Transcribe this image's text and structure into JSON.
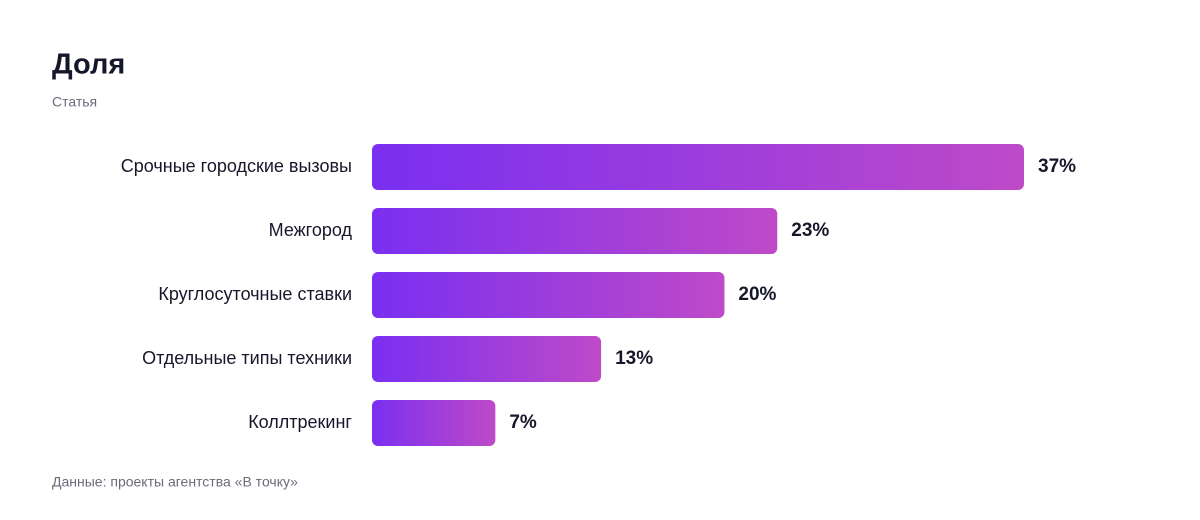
{
  "chart_data": {
    "type": "bar",
    "orientation": "horizontal",
    "title": "Доля",
    "subtitle": "Статья",
    "categories": [
      "Срочные городские вызовы",
      "Межгород",
      "Круглосуточные ставки",
      "Отдельные типы техники",
      "Коллтрекинг"
    ],
    "values": [
      37,
      23,
      20,
      13,
      7
    ],
    "value_labels": [
      "37%",
      "23%",
      "20%",
      "13%",
      "7%"
    ],
    "gradient": [
      "#7a2ff1",
      "#be4ac8"
    ],
    "source": "Данные: проекты агентства «В точку»"
  }
}
